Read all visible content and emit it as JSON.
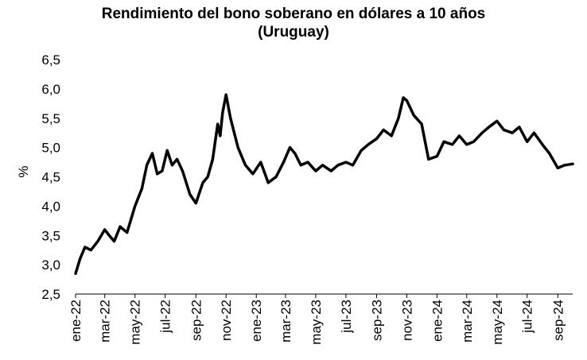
{
  "chart_data": {
    "type": "line",
    "title_line1": "Rendimiento del bono soberano en dólares a 10 años",
    "title_line2": "(Uruguay)",
    "xlabel": "",
    "ylabel": "%",
    "ylim": [
      2.5,
      6.5
    ],
    "yticks": [
      "2,5",
      "3,0",
      "3,5",
      "4,0",
      "4,5",
      "5,0",
      "5,5",
      "6,0",
      "6,5"
    ],
    "xticks": [
      "ene-22",
      "mar-22",
      "may-22",
      "jul-22",
      "sep-22",
      "nov-22",
      "ene-23",
      "mar-23",
      "may-23",
      "jul-23",
      "sep-23",
      "nov-23",
      "ene-24",
      "mar-24",
      "may-24",
      "jul-24",
      "sep-24"
    ],
    "grid": false,
    "legend": "none",
    "line_color": "#000000",
    "series": [
      {
        "x": [
          "2022-01-01",
          "2022-01-10",
          "2022-01-20",
          "2022-02-01",
          "2022-02-15",
          "2022-03-01",
          "2022-03-10",
          "2022-03-20",
          "2022-04-01",
          "2022-04-15",
          "2022-05-01",
          "2022-05-15",
          "2022-05-25",
          "2022-06-05",
          "2022-06-15",
          "2022-06-25",
          "2022-07-05",
          "2022-07-15",
          "2022-07-25",
          "2022-08-05",
          "2022-08-20",
          "2022-09-01",
          "2022-09-15",
          "2022-09-25",
          "2022-10-05",
          "2022-10-15",
          "2022-10-20",
          "2022-10-25",
          "2022-11-01",
          "2022-11-10",
          "2022-11-25",
          "2022-12-10",
          "2022-12-25",
          "2023-01-10",
          "2023-01-25",
          "2023-02-10",
          "2023-02-25",
          "2023-03-10",
          "2023-03-20",
          "2023-04-01",
          "2023-04-15",
          "2023-05-01",
          "2023-05-15",
          "2023-06-01",
          "2023-06-15",
          "2023-07-01",
          "2023-07-15",
          "2023-08-01",
          "2023-08-15",
          "2023-09-01",
          "2023-09-15",
          "2023-10-01",
          "2023-10-15",
          "2023-10-25",
          "2023-11-01",
          "2023-11-15",
          "2023-12-01",
          "2023-12-15",
          "2024-01-01",
          "2024-01-15",
          "2024-02-01",
          "2024-02-15",
          "2024-03-01",
          "2024-03-15",
          "2024-04-01",
          "2024-04-15",
          "2024-05-01",
          "2024-05-15",
          "2024-06-01",
          "2024-06-15",
          "2024-07-01",
          "2024-07-15",
          "2024-08-01",
          "2024-08-15",
          "2024-09-01",
          "2024-09-15",
          "2024-10-01"
        ],
        "y": [
          2.85,
          3.1,
          3.3,
          3.25,
          3.4,
          3.6,
          3.5,
          3.4,
          3.65,
          3.55,
          4.0,
          4.3,
          4.7,
          4.9,
          4.55,
          4.6,
          4.95,
          4.7,
          4.8,
          4.6,
          4.2,
          4.05,
          4.4,
          4.5,
          4.8,
          5.4,
          5.2,
          5.6,
          5.9,
          5.5,
          5.0,
          4.7,
          4.55,
          4.75,
          4.4,
          4.5,
          4.75,
          5.0,
          4.9,
          4.7,
          4.75,
          4.6,
          4.7,
          4.6,
          4.7,
          4.75,
          4.7,
          4.95,
          5.05,
          5.15,
          5.3,
          5.2,
          5.5,
          5.85,
          5.8,
          5.55,
          5.4,
          4.8,
          4.85,
          5.1,
          5.05,
          5.2,
          5.05,
          5.1,
          5.25,
          5.35,
          5.45,
          5.3,
          5.25,
          5.35,
          5.1,
          5.25,
          5.05,
          4.9,
          4.65,
          4.7,
          4.72
        ]
      }
    ]
  }
}
